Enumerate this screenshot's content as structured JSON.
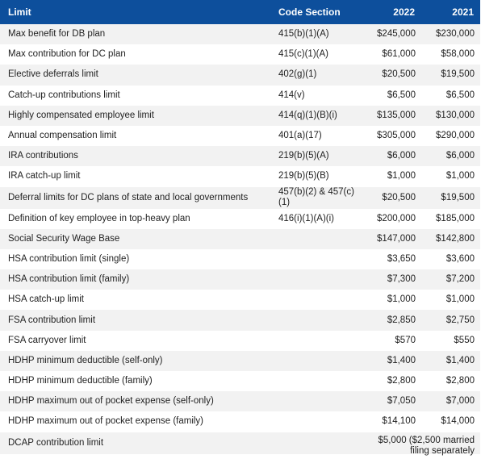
{
  "table": {
    "headers": {
      "limit": "Limit",
      "code_section": "Code Section",
      "y2022": "2022",
      "y2021": "2021"
    },
    "rows": [
      {
        "limit": "Max benefit for DB plan",
        "code": "415(b)(1)(A)",
        "y2022": "$245,000",
        "y2021": "$230,000"
      },
      {
        "limit": "Max contribution for DC plan",
        "code": "415(c)(1)(A)",
        "y2022": "$61,000",
        "y2021": "$58,000"
      },
      {
        "limit": "Elective deferrals limit",
        "code": "402(g)(1)",
        "y2022": "$20,500",
        "y2021": "$19,500"
      },
      {
        "limit": "Catch-up contributions limit",
        "code": "414(v)",
        "y2022": "$6,500",
        "y2021": "$6,500"
      },
      {
        "limit": "Highly compensated employee limit",
        "code": "414(q)(1)(B)(i)",
        "y2022": "$135,000",
        "y2021": "$130,000"
      },
      {
        "limit": "Annual compensation limit",
        "code": "401(a)(17)",
        "y2022": "$305,000",
        "y2021": "$290,000"
      },
      {
        "limit": "IRA contributions",
        "code": "219(b)(5)(A)",
        "y2022": "$6,000",
        "y2021": "$6,000"
      },
      {
        "limit": "IRA catch-up limit",
        "code": "219(b)(5)(B)",
        "y2022": "$1,000",
        "y2021": "$1,000"
      },
      {
        "limit": "Deferral limits for DC plans of state and local governments",
        "code": "457(b)(2) & 457(c)(1)",
        "y2022": "$20,500",
        "y2021": "$19,500"
      },
      {
        "limit": "Definition of key employee in top-heavy plan",
        "code": "416(i)(1)(A)(i)",
        "y2022": "$200,000",
        "y2021": "$185,000"
      },
      {
        "limit": "Social Security Wage Base",
        "code": "",
        "y2022": "$147,000",
        "y2021": "$142,800"
      },
      {
        "limit": "HSA contribution limit (single)",
        "code": "",
        "y2022": "$3,650",
        "y2021": "$3,600"
      },
      {
        "limit": "HSA contribution limit (family)",
        "code": "",
        "y2022": "$7,300",
        "y2021": "$7,200"
      },
      {
        "limit": "HSA catch-up limit",
        "code": "",
        "y2022": "$1,000",
        "y2021": "$1,000"
      },
      {
        "limit": "FSA contribution limit",
        "code": "",
        "y2022": "$2,850",
        "y2021": "$2,750"
      },
      {
        "limit": "FSA carryover limit",
        "code": "",
        "y2022": "$570",
        "y2021": "$550"
      },
      {
        "limit": "HDHP minimum deductible (self-only)",
        "code": "",
        "y2022": "$1,400",
        "y2021": "$1,400"
      },
      {
        "limit": "HDHP minimum deductible (family)",
        "code": "",
        "y2022": "$2,800",
        "y2021": "$2,800"
      },
      {
        "limit": "HDHP maximum out of pocket expense (self-only)",
        "code": "",
        "y2022": "$7,050",
        "y2021": "$7,000"
      },
      {
        "limit": "HDHP maximum out of pocket expense (family)",
        "code": "",
        "y2022": "$14,100",
        "y2021": "$14,000"
      },
      {
        "limit": "DCAP contribution limit",
        "code": "",
        "y2022_y2021_merged": "$5,000 ($2,500 married filing separately"
      }
    ]
  },
  "colors": {
    "header_bg": "#0d4f9c",
    "header_text": "#ffffff",
    "row_alt": "#f2f2f2",
    "text": "#222222"
  }
}
